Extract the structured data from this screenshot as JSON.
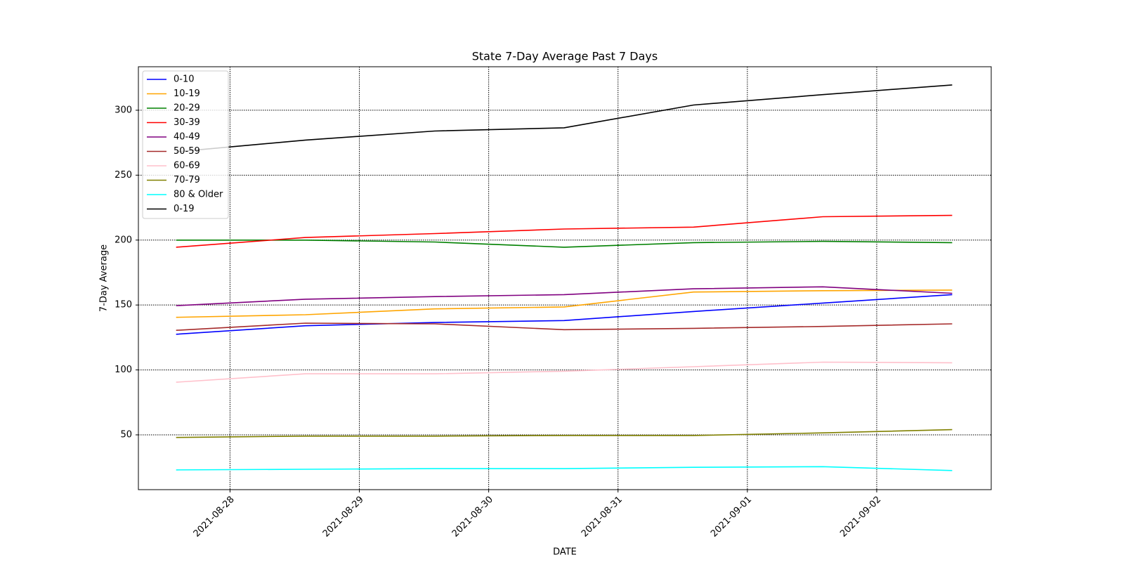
{
  "chart_data": {
    "type": "line",
    "title": "State 7-Day Average Past 7 Days",
    "xlabel": "DATE",
    "ylabel": "7-Day Average",
    "x": [
      "2021-08-27T14:00",
      "2021-08-28T14:00",
      "2021-08-29T14:00",
      "2021-08-30T14:00",
      "2021-08-31T14:00",
      "2021-09-01T14:00",
      "2021-09-02T14:00"
    ],
    "xlim": [
      "2021-08-27T07:00",
      "2021-09-02T21:15"
    ],
    "xticks": [
      "2021-08-28",
      "2021-08-29",
      "2021-08-30",
      "2021-08-31",
      "2021-09-01",
      "2021-09-02"
    ],
    "ylim": [
      7.8,
      333.5
    ],
    "yticks": [
      50,
      100,
      150,
      200,
      250,
      300
    ],
    "grid": true,
    "legend": "upper left",
    "series": [
      {
        "name": "0-10",
        "color": "blue",
        "values": [
          127.5,
          134,
          136.5,
          138,
          145,
          151.5,
          158
        ]
      },
      {
        "name": "10-19",
        "color": "orange",
        "values": [
          140.5,
          142.5,
          147,
          148.5,
          160,
          161,
          161.5
        ]
      },
      {
        "name": "20-29",
        "color": "green",
        "values": [
          200,
          200,
          198.5,
          194.5,
          198,
          199,
          198
        ]
      },
      {
        "name": "30-39",
        "color": "red",
        "values": [
          194.5,
          202,
          205,
          208.5,
          210,
          218,
          219
        ]
      },
      {
        "name": "40-49",
        "color": "purple",
        "values": [
          149.5,
          154.5,
          156.5,
          158,
          162.5,
          164,
          159
        ]
      },
      {
        "name": "50-59",
        "color": "brown",
        "values": [
          130.5,
          136,
          135.5,
          131,
          132,
          133.5,
          135.5
        ]
      },
      {
        "name": "60-69",
        "color": "pink",
        "values": [
          90.5,
          97,
          97,
          99,
          102.5,
          106,
          105.5
        ]
      },
      {
        "name": "70-79",
        "color": "olive",
        "values": [
          48,
          49,
          49,
          49.5,
          49.5,
          51.5,
          54
        ]
      },
      {
        "name": "80 & Older",
        "color": "cyan",
        "values": [
          23,
          23.5,
          24,
          24,
          25,
          25.5,
          22.5
        ]
      },
      {
        "name": "0-19",
        "color": "black",
        "values": [
          268,
          277,
          284,
          286.5,
          304,
          312,
          319.5
        ]
      }
    ]
  }
}
